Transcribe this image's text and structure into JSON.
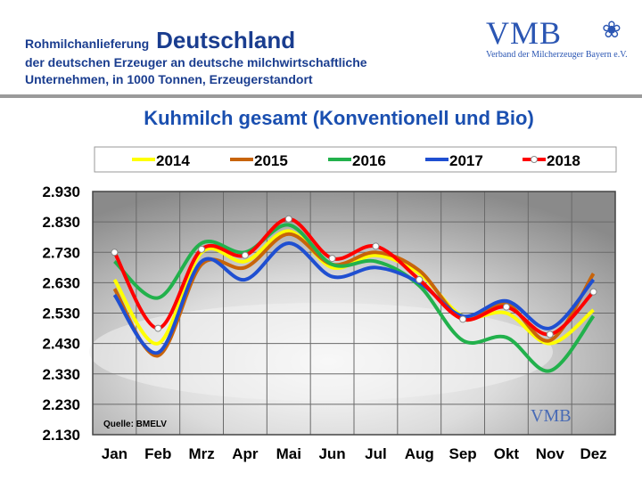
{
  "header": {
    "line1_prefix": "Rohmilchanlieferung",
    "line1_main": "Deutschland",
    "line2": "der deutschen Erzeuger an deutsche milchwirtschaftliche",
    "line3": "Unternehmen, in 1000 Tonnen, Erzeugerstandort"
  },
  "logo": {
    "text": "VMB",
    "subtitle": "Verband der Milcherzeuger Bayern e.V."
  },
  "chart_data": {
    "type": "line",
    "title": "Kuhmilch gesamt (Konventionell und Bio)",
    "xlabel": "",
    "ylabel": "",
    "categories": [
      "Jan",
      "Feb",
      "Mrz",
      "Apr",
      "Mai",
      "Jun",
      "Jul",
      "Aug",
      "Sep",
      "Okt",
      "Nov",
      "Dez"
    ],
    "ylim": [
      2.13,
      2.93
    ],
    "yticks": [
      "2.930",
      "2.830",
      "2.730",
      "2.630",
      "2.530",
      "2.430",
      "2.330",
      "2.230",
      "2.130"
    ],
    "legend_position": "top",
    "source_label": "Quelle: BMELV",
    "watermark": "VMB",
    "series": [
      {
        "name": "2014",
        "color": "#ffff00",
        "values": [
          2.64,
          2.43,
          2.73,
          2.7,
          2.8,
          2.68,
          2.72,
          2.66,
          2.52,
          2.53,
          2.43,
          2.54
        ]
      },
      {
        "name": "2015",
        "color": "#c8640a",
        "values": [
          2.61,
          2.39,
          2.69,
          2.68,
          2.79,
          2.69,
          2.73,
          2.67,
          2.51,
          2.56,
          2.44,
          2.66
        ]
      },
      {
        "name": "2016",
        "color": "#22b14c",
        "values": [
          2.7,
          2.58,
          2.76,
          2.73,
          2.82,
          2.69,
          2.7,
          2.62,
          2.44,
          2.45,
          2.34,
          2.52
        ]
      },
      {
        "name": "2017",
        "color": "#1f4fd1",
        "values": [
          2.59,
          2.4,
          2.7,
          2.64,
          2.76,
          2.65,
          2.68,
          2.63,
          2.52,
          2.57,
          2.48,
          2.64
        ]
      },
      {
        "name": "2018",
        "color": "#ff0000",
        "marker": true,
        "values": [
          2.73,
          2.48,
          2.74,
          2.72,
          2.84,
          2.71,
          2.75,
          2.64,
          2.51,
          2.55,
          2.46,
          2.6
        ]
      }
    ]
  }
}
